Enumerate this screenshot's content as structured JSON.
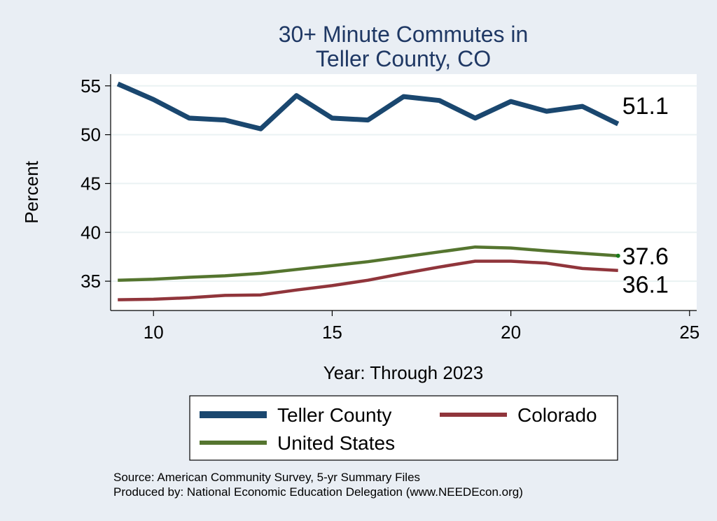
{
  "chart_data": {
    "type": "line",
    "title": [
      "30+ Minute Commutes in",
      "Teller County, CO"
    ],
    "xlabel": "Year: Through 2023",
    "ylabel": "Percent",
    "xlim": [
      8.8,
      25.2
    ],
    "ylim": [
      32,
      56.2
    ],
    "xticks": [
      10,
      15,
      20,
      25
    ],
    "yticks": [
      35,
      40,
      45,
      50,
      55
    ],
    "grid": true,
    "legend_position": "bottom",
    "x": [
      9,
      10,
      11,
      12,
      13,
      14,
      15,
      16,
      17,
      18,
      19,
      20,
      21,
      22,
      23
    ],
    "series": [
      {
        "name": "Teller County",
        "color": "#1a476f",
        "values": [
          55.2,
          53.6,
          51.7,
          51.5,
          50.6,
          54.0,
          51.7,
          51.5,
          53.9,
          53.5,
          51.7,
          53.4,
          52.4,
          52.9,
          51.1
        ],
        "end_label": "51.1"
      },
      {
        "name": "Colorado",
        "color": "#90353b",
        "values": [
          33.1,
          33.15,
          33.3,
          33.55,
          33.6,
          34.1,
          34.55,
          35.1,
          35.8,
          36.45,
          37.05,
          37.05,
          36.85,
          36.3,
          36.1
        ],
        "end_label": "36.1"
      },
      {
        "name": "United States",
        "color": "#55752f",
        "values": [
          35.1,
          35.2,
          35.4,
          35.55,
          35.8,
          36.2,
          36.6,
          37.0,
          37.5,
          38.0,
          38.5,
          38.4,
          38.1,
          37.85,
          37.6
        ],
        "end_label": "37.6"
      }
    ]
  },
  "footer": {
    "source": "Source: American Community Survey, 5-yr Summary Files",
    "produced_by": "Produced by: National Economic Education Delegation (www.NEEDEcon.org)"
  }
}
